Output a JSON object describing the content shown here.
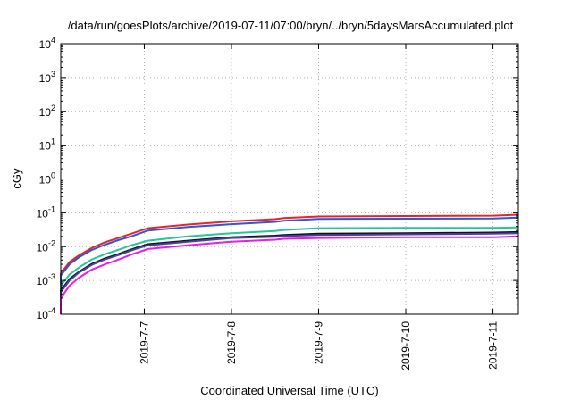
{
  "chart_data": {
    "type": "line",
    "title": "/data/run/goesPlots/archive/2019-07-11/07:00/bryn/../bryn/5daysMarsAccumulated.plot",
    "xlabel": "Coordinated Universal Time (UTC)",
    "ylabel": "cGy",
    "y_scale": "log",
    "ylim": [
      0.0001,
      10000
    ],
    "xlim": [
      "2019-07-06 01:00",
      "2019-07-11 07:00"
    ],
    "grid": true,
    "x_tick_labels": [
      "2019-7-7",
      "2019-7-8",
      "2019-7-9",
      "2019-7-10",
      "2019-7-11"
    ],
    "y_tick_labels": [
      {
        "base": "10",
        "exp": "4"
      },
      {
        "base": "10",
        "exp": "3"
      },
      {
        "base": "10",
        "exp": "2"
      },
      {
        "base": "10",
        "exp": "1"
      },
      {
        "base": "10",
        "exp": "0"
      },
      {
        "base": "10",
        "exp": "-1"
      },
      {
        "base": "10",
        "exp": "-2"
      },
      {
        "base": "10",
        "exp": "-3"
      },
      {
        "base": "10",
        "exp": "-4"
      }
    ],
    "x": [
      "2019-07-06 01:00",
      "2019-07-06 03:24",
      "2019-07-06 06:00",
      "2019-07-06 09:36",
      "2019-07-06 13:12",
      "2019-07-06 16:48",
      "2019-07-06 20:24",
      "2019-07-07 01:00",
      "2019-07-07 12:00",
      "2019-07-08 00:00",
      "2019-07-08 12:00",
      "2019-07-08 14:24",
      "2019-07-09 00:00",
      "2019-07-10 00:00",
      "2019-07-11 00:00",
      "2019-07-11 07:00"
    ],
    "series": [
      {
        "color": "#e8222a",
        "values": [
          0.0016,
          0.0035,
          0.0055,
          0.0092,
          0.0135,
          0.018,
          0.024,
          0.035,
          0.045,
          0.056,
          0.065,
          0.07,
          0.078,
          0.08,
          0.082,
          0.088
        ]
      },
      {
        "color": "#2f56d8",
        "values": [
          0.0014,
          0.003,
          0.0048,
          0.008,
          0.0115,
          0.0155,
          0.02,
          0.03,
          0.038,
          0.046,
          0.054,
          0.058,
          0.066,
          0.067,
          0.068,
          0.072
        ]
      },
      {
        "color": "#22c79a",
        "values": [
          0.0007,
          0.0015,
          0.0024,
          0.0042,
          0.006,
          0.008,
          0.011,
          0.015,
          0.02,
          0.025,
          0.029,
          0.031,
          0.035,
          0.036,
          0.036,
          0.037
        ]
      },
      {
        "color": "#111111",
        "values": [
          0.0005,
          0.0011,
          0.0018,
          0.0031,
          0.0045,
          0.006,
          0.0082,
          0.0118,
          0.015,
          0.019,
          0.021,
          0.022,
          0.024,
          0.025,
          0.026,
          0.027
        ]
      },
      {
        "color": "#4a3f9e",
        "values": [
          0.00045,
          0.001,
          0.0017,
          0.0029,
          0.0042,
          0.0056,
          0.0077,
          0.011,
          0.014,
          0.018,
          0.0195,
          0.0205,
          0.022,
          0.023,
          0.024,
          0.025
        ]
      },
      {
        "color": "#e61ee6",
        "values": [
          0.0003,
          0.0007,
          0.0012,
          0.0021,
          0.003,
          0.0041,
          0.0058,
          0.0085,
          0.011,
          0.014,
          0.016,
          0.017,
          0.018,
          0.019,
          0.019,
          0.02
        ]
      }
    ]
  }
}
